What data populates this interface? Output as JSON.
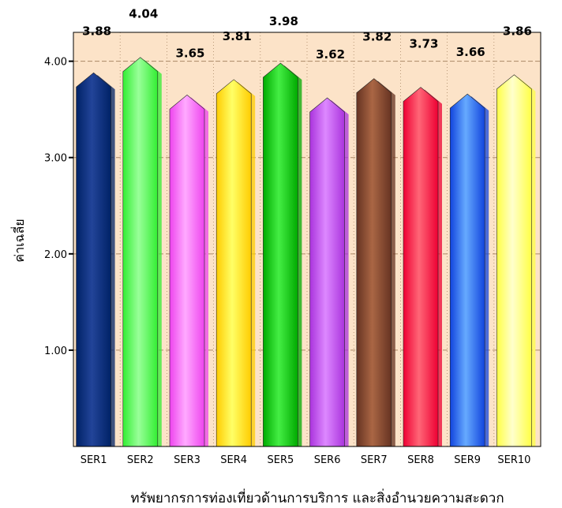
{
  "chart_data": {
    "type": "bar",
    "categories": [
      "SER1",
      "SER2",
      "SER3",
      "SER4",
      "SER5",
      "SER6",
      "SER7",
      "SER8",
      "SER9",
      "SER10"
    ],
    "values": [
      3.88,
      4.04,
      3.65,
      3.81,
      3.98,
      3.62,
      3.82,
      3.73,
      3.66,
      3.86
    ],
    "value_labels": [
      "3.88",
      "4.04",
      "3.65",
      "3.81",
      "3.98",
      "3.62",
      "3.82",
      "3.73",
      "3.66",
      "3.86"
    ],
    "bar_colors": [
      "#002266",
      "#33ee33",
      "#ee44ee",
      "#ffcc00",
      "#00aa00",
      "#aa33dd",
      "#663322",
      "#ee0033",
      "#1144dd",
      "#ffff44"
    ],
    "bar_highlights": [
      "#224499",
      "#99ff99",
      "#ffaaff",
      "#ffff66",
      "#44ee44",
      "#dd88ff",
      "#aa6644",
      "#ff6677",
      "#66aaff",
      "#ffffcc"
    ],
    "xlabel": "ทรัพยากรการท่องเที่ยวด้านการบริการ และสิ่งอำนวยความสะดวก",
    "ylabel": "ค่าเฉลี่ย",
    "ylim": [
      0,
      4.3
    ],
    "yticks": [
      1.0,
      2.0,
      3.0,
      4.0
    ],
    "ytick_labels": [
      "1.00",
      "2.00",
      "3.00",
      "4.00"
    ],
    "plot_background": "#fce3c8",
    "grid": true
  }
}
